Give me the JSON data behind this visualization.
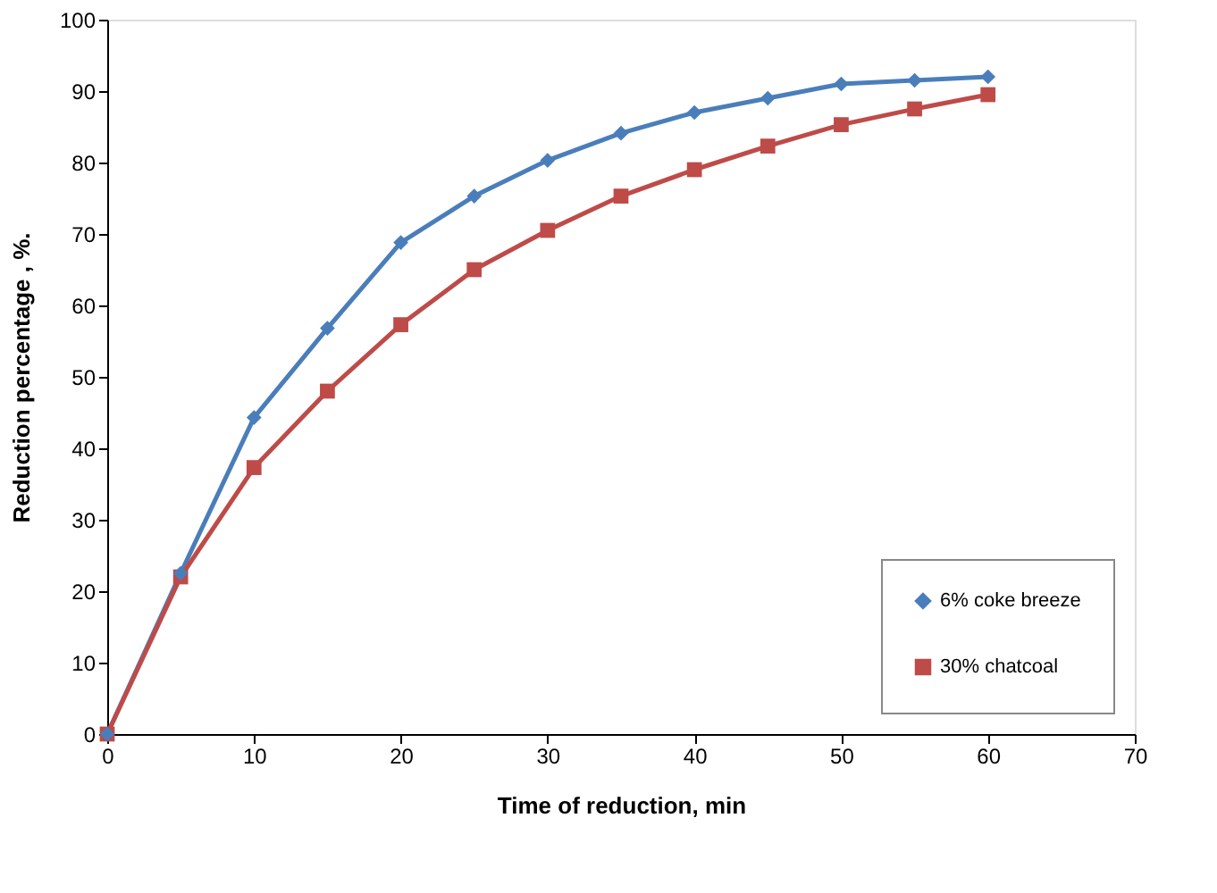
{
  "chart_data": {
    "type": "line",
    "xlabel": "Time of reduction, min",
    "ylabel": "Reduction percentage , %.",
    "x": [
      0,
      5,
      10,
      15,
      20,
      25,
      30,
      35,
      40,
      45,
      50,
      55,
      60
    ],
    "series": [
      {
        "name": "6% coke breeze",
        "color": "#4a7ebb",
        "marker": "diamond",
        "values": [
          0,
          22.5,
          44.3,
          56.8,
          68.8,
          75.3,
          80.3,
          84.1,
          87,
          89,
          91,
          91.5,
          92
        ]
      },
      {
        "name": "30% chatcoal",
        "color": "#be4b48",
        "marker": "square",
        "values": [
          0,
          22,
          37.3,
          48,
          57.3,
          65,
          70.5,
          75.3,
          79,
          82.3,
          85.3,
          87.5,
          89.5
        ]
      }
    ],
    "xlim": [
      0,
      70
    ],
    "xticks": [
      0,
      10,
      20,
      30,
      40,
      50,
      60,
      70
    ],
    "ylim": [
      0,
      100
    ],
    "yticks": [
      0,
      10,
      20,
      30,
      40,
      50,
      60,
      70,
      80,
      90,
      100
    ],
    "grid": false,
    "legend": "bottom right",
    "line_style": "solid"
  }
}
